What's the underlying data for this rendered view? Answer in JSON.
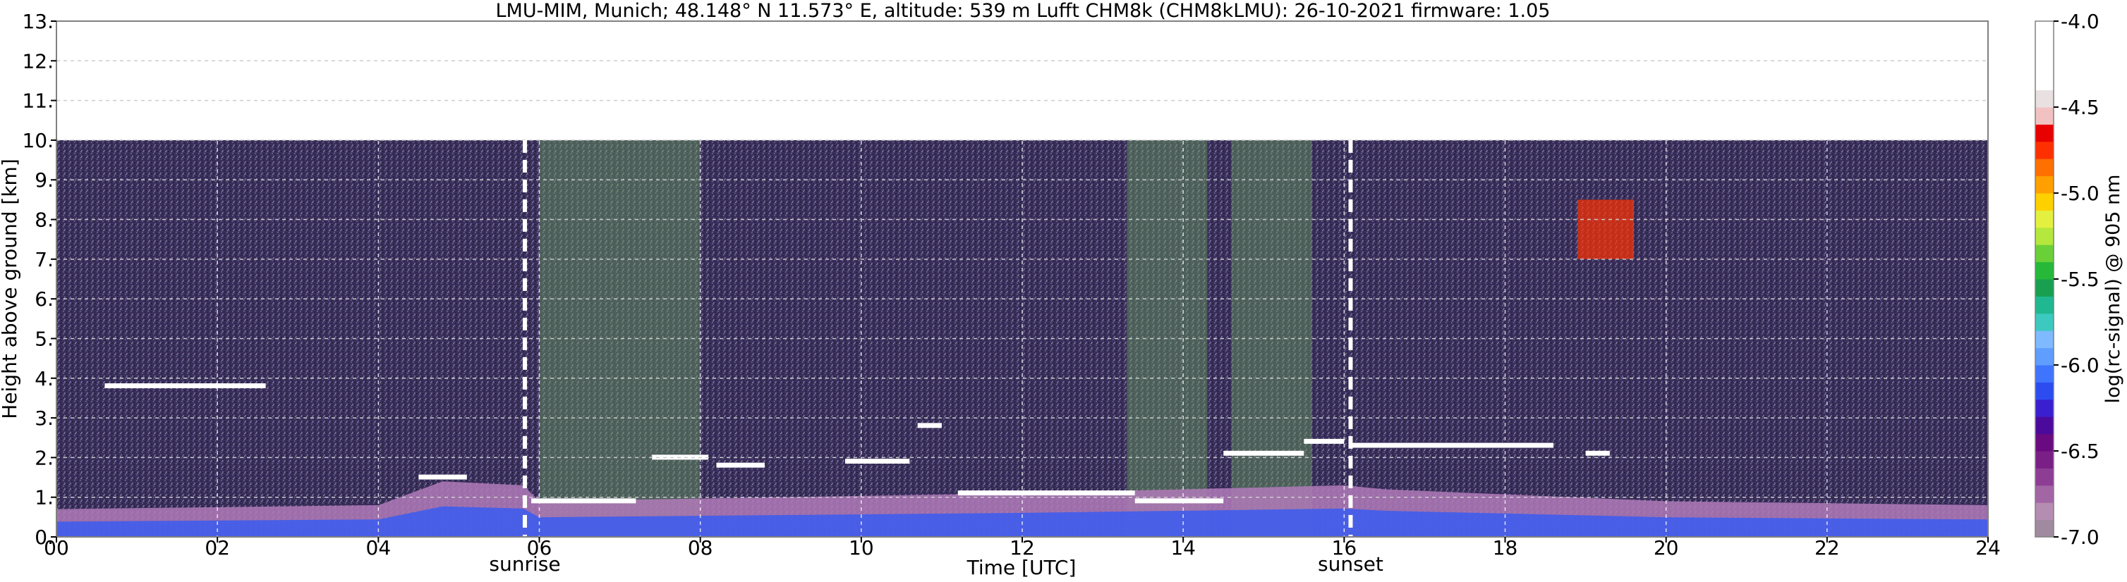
{
  "chart_data": {
    "type": "heatmap",
    "title": "LMU-MIM, Munich; 48.148° N 11.573° E, altitude: 539 m    Lufft CHM8k (CHM8kLMU): 26-10-2021    firmware: 1.05",
    "xlabel": "Time [UTC]",
    "ylabel": "Height above ground [km]",
    "xlim": [
      0,
      24
    ],
    "ylim": [
      0,
      13
    ],
    "x_ticks": [
      "00",
      "02",
      "04",
      "06",
      "08",
      "10",
      "12",
      "14",
      "16",
      "18",
      "20",
      "22",
      "24"
    ],
    "y_ticks": [
      "0.",
      "1.",
      "2.",
      "3.",
      "4.",
      "5.",
      "6.",
      "7.",
      "8.",
      "9.",
      "10.",
      "11.",
      "12.",
      "13."
    ],
    "data_top_km": 10,
    "grid": true,
    "markers": [
      {
        "label": "sunrise",
        "time": 5.82
      },
      {
        "label": "sunset",
        "time": 16.08
      }
    ],
    "colorbar": {
      "label": "log(rc-signal) @ 905 nm",
      "range": [
        -7.0,
        -4.0
      ],
      "ticks": [
        "-4.0",
        "-4.5",
        "-5.0",
        "-5.5",
        "-6.0",
        "-6.5",
        "-7.0"
      ],
      "colors": [
        "#a08aa0",
        "#b58cb2",
        "#a266a4",
        "#8e3d94",
        "#7a1f86",
        "#6a0a80",
        "#4b0a9c",
        "#3a1fd0",
        "#2c4cf0",
        "#3f74ff",
        "#5f9dff",
        "#7fb9ff",
        "#3cc9c0",
        "#20b890",
        "#18a050",
        "#26b838",
        "#6ad038",
        "#b4e83c",
        "#e4f040",
        "#ffd000",
        "#ffa000",
        "#ff7000",
        "#ff3000",
        "#e80000",
        "#f2c2c2",
        "#e9e0e2",
        "#ffffff",
        "#ffffff",
        "#ffffff",
        "#ffffff"
      ]
    },
    "cloud_layers": [
      {
        "t0": 0.6,
        "t1": 2.6,
        "h": 3.8
      },
      {
        "t0": 4.5,
        "t1": 5.1,
        "h": 1.5
      },
      {
        "t0": 5.9,
        "t1": 7.2,
        "h": 0.9
      },
      {
        "t0": 7.4,
        "t1": 8.1,
        "h": 2.0
      },
      {
        "t0": 8.2,
        "t1": 8.8,
        "h": 1.8
      },
      {
        "t0": 9.8,
        "t1": 10.6,
        "h": 1.9
      },
      {
        "t0": 10.7,
        "t1": 11.0,
        "h": 2.8
      },
      {
        "t0": 11.2,
        "t1": 13.4,
        "h": 1.1
      },
      {
        "t0": 13.4,
        "t1": 14.5,
        "h": 0.9
      },
      {
        "t0": 14.5,
        "t1": 15.5,
        "h": 2.1
      },
      {
        "t0": 15.5,
        "t1": 16.0,
        "h": 2.4
      },
      {
        "t0": 16.1,
        "t1": 18.6,
        "h": 2.3
      },
      {
        "t0": 19.0,
        "t1": 19.3,
        "h": 2.1
      }
    ],
    "boundary_layer": [
      {
        "t": 0,
        "h": 0.7
      },
      {
        "t": 4,
        "h": 0.8
      },
      {
        "t": 4.8,
        "h": 1.4
      },
      {
        "t": 5.8,
        "h": 1.3
      },
      {
        "t": 6,
        "h": 0.9
      },
      {
        "t": 9,
        "h": 1.0
      },
      {
        "t": 12,
        "h": 1.1
      },
      {
        "t": 16,
        "h": 1.3
      },
      {
        "t": 16.5,
        "h": 1.2
      },
      {
        "t": 20,
        "h": 0.9
      },
      {
        "t": 24,
        "h": 0.8
      }
    ]
  }
}
